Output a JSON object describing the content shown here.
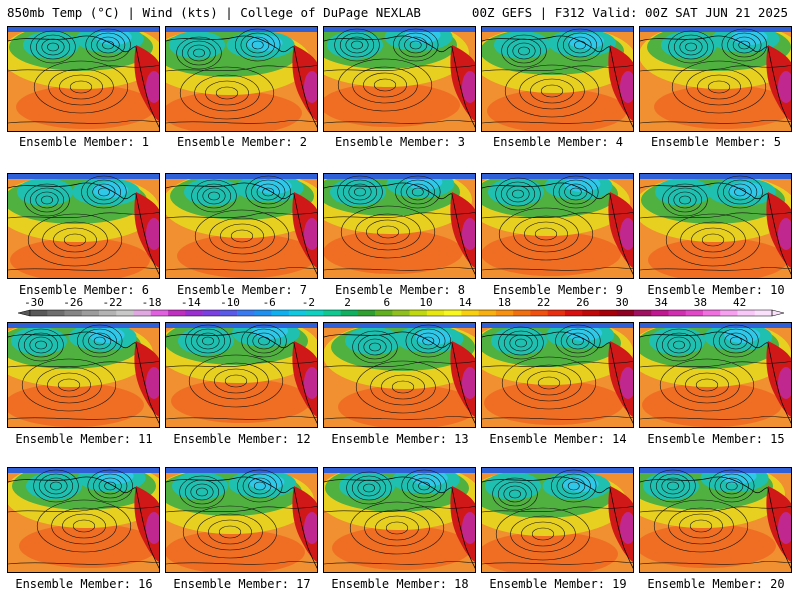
{
  "header": {
    "left": "850mb Temp (°C) | Wind (kts) | College of DuPage NEXLAB",
    "right": "00Z GEFS | F312 Valid: 00Z SAT JUN 21 2025"
  },
  "members": [
    {
      "label": "Ensemble Member: 1"
    },
    {
      "label": "Ensemble Member: 2"
    },
    {
      "label": "Ensemble Member: 3"
    },
    {
      "label": "Ensemble Member: 4"
    },
    {
      "label": "Ensemble Member: 5"
    },
    {
      "label": "Ensemble Member: 6"
    },
    {
      "label": "Ensemble Member: 7"
    },
    {
      "label": "Ensemble Member: 8"
    },
    {
      "label": "Ensemble Member: 9"
    },
    {
      "label": "Ensemble Member: 10"
    },
    {
      "label": "Ensemble Member: 11"
    },
    {
      "label": "Ensemble Member: 12"
    },
    {
      "label": "Ensemble Member: 13"
    },
    {
      "label": "Ensemble Member: 14"
    },
    {
      "label": "Ensemble Member: 15"
    },
    {
      "label": "Ensemble Member: 16"
    },
    {
      "label": "Ensemble Member: 17"
    },
    {
      "label": "Ensemble Member: 18"
    },
    {
      "label": "Ensemble Member: 19"
    },
    {
      "label": "Ensemble Member: 20"
    }
  ],
  "colorbar": {
    "ticks": [
      "-30",
      "-26",
      "-22",
      "-18",
      "-14",
      "-10",
      "-6",
      "-2",
      "2",
      "6",
      "10",
      "14",
      "18",
      "22",
      "26",
      "30",
      "34",
      "38",
      "42"
    ],
    "colors": [
      "#595959",
      "#6e6e6e",
      "#858585",
      "#9c9c9c",
      "#b3b3b3",
      "#c8c8c8",
      "#e0a8e0",
      "#e060e0",
      "#c030c0",
      "#9a30d0",
      "#7a40e0",
      "#5a5ae8",
      "#3a7af0",
      "#2090f0",
      "#10b0f0",
      "#10c8e0",
      "#10d0c0",
      "#10c890",
      "#10b060",
      "#30a030",
      "#60b020",
      "#90c020",
      "#c0d810",
      "#e8e810",
      "#f8f820",
      "#f8d010",
      "#f8b010",
      "#f89010",
      "#f07010",
      "#f05010",
      "#e83010",
      "#d81010",
      "#c00808",
      "#a80008",
      "#900020",
      "#a01060",
      "#c01890",
      "#d030b0",
      "#e048c8",
      "#f070e0",
      "#f8a0f0",
      "#f8c8f8",
      "#fbe0fb"
    ]
  },
  "palette": {
    "sea_warm": "#f09030",
    "sea_hot": "#f06020",
    "mid": "#e8d020",
    "green": "#50b040",
    "teal": "#20c0b0",
    "cyan": "#30c8e8",
    "blue": "#3060d8",
    "land_red": "#d01818",
    "land_magenta": "#c02890"
  }
}
